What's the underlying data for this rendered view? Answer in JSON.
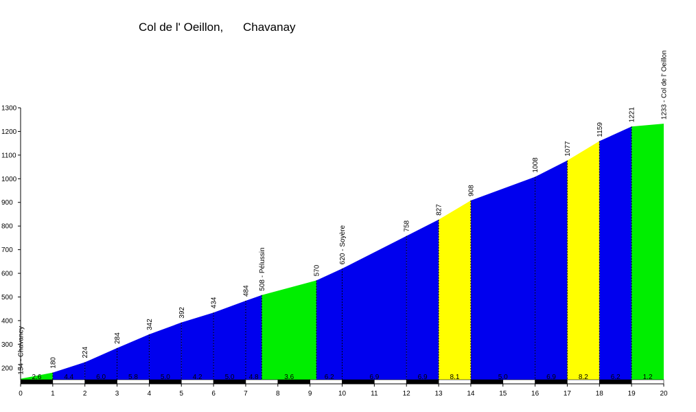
{
  "chart_data": {
    "type": "area",
    "title": "Col de l' Oeillon,",
    "subtitle": "Chavanay",
    "xlabel": "",
    "ylabel": "",
    "xlim": [
      0,
      20
    ],
    "ylim": [
      150,
      1300
    ],
    "x_ticks": [
      0,
      1,
      2,
      3,
      4,
      5,
      6,
      7,
      8,
      9,
      10,
      11,
      12,
      13,
      14,
      15,
      16,
      17,
      18,
      19,
      20
    ],
    "y_ticks": [
      200,
      300,
      400,
      500,
      600,
      700,
      800,
      900,
      1000,
      1100,
      1200,
      1300
    ],
    "points": [
      {
        "x": 0,
        "y": 154,
        "label": "154 - Chavaney"
      },
      {
        "x": 1,
        "y": 180,
        "label": "180"
      },
      {
        "x": 2,
        "y": 224,
        "label": "224"
      },
      {
        "x": 3,
        "y": 284,
        "label": "284"
      },
      {
        "x": 4,
        "y": 342,
        "label": "342"
      },
      {
        "x": 5,
        "y": 392,
        "label": "392"
      },
      {
        "x": 6,
        "y": 434,
        "label": "434"
      },
      {
        "x": 7,
        "y": 484,
        "label": "484"
      },
      {
        "x": 7.5,
        "y": 508,
        "label": "508 - Pélussin"
      },
      {
        "x": 9.2,
        "y": 570,
        "label": "570"
      },
      {
        "x": 10,
        "y": 620,
        "label": "620 - Soyère"
      },
      {
        "x": 12,
        "y": 758,
        "label": "758"
      },
      {
        "x": 13,
        "y": 827,
        "label": "827"
      },
      {
        "x": 14,
        "y": 908,
        "label": "908"
      },
      {
        "x": 16,
        "y": 1008,
        "label": "1008"
      },
      {
        "x": 17,
        "y": 1077,
        "label": "1077"
      },
      {
        "x": 18,
        "y": 1159,
        "label": "1159"
      },
      {
        "x": 19,
        "y": 1221,
        "label": "1221"
      },
      {
        "x": 20,
        "y": 1233,
        "label": "1233 - Col de l' Oeillon"
      }
    ],
    "segments": [
      {
        "from": 0,
        "to": 1,
        "gradient": "2.6",
        "color": "#00ee00"
      },
      {
        "from": 1,
        "to": 2,
        "gradient": "4.4",
        "color": "#0000ee"
      },
      {
        "from": 2,
        "to": 3,
        "gradient": "6.0",
        "color": "#0000ee"
      },
      {
        "from": 3,
        "to": 4,
        "gradient": "5.8",
        "color": "#0000ee"
      },
      {
        "from": 4,
        "to": 5,
        "gradient": "5.0",
        "color": "#0000ee"
      },
      {
        "from": 5,
        "to": 6,
        "gradient": "4.2",
        "color": "#0000ee"
      },
      {
        "from": 6,
        "to": 7,
        "gradient": "5.0",
        "color": "#0000ee"
      },
      {
        "from": 7,
        "to": 7.5,
        "gradient": "4.8",
        "color": "#0000ee"
      },
      {
        "from": 7.5,
        "to": 9.2,
        "gradient": "3.6",
        "color": "#00ee00"
      },
      {
        "from": 9.2,
        "to": 10,
        "gradient": "6.2",
        "color": "#0000ee"
      },
      {
        "from": 10,
        "to": 12,
        "gradient": "6.9",
        "color": "#0000ee"
      },
      {
        "from": 12,
        "to": 13,
        "gradient": "6.9",
        "color": "#0000ee"
      },
      {
        "from": 13,
        "to": 14,
        "gradient": "8.1",
        "color": "#ffff00"
      },
      {
        "from": 14,
        "to": 16,
        "gradient": "5.0",
        "color": "#0000ee"
      },
      {
        "from": 16,
        "to": 17,
        "gradient": "6.9",
        "color": "#0000ee"
      },
      {
        "from": 17,
        "to": 18,
        "gradient": "8.2",
        "color": "#ffff00"
      },
      {
        "from": 18,
        "to": 19,
        "gradient": "6.2",
        "color": "#0000ee"
      },
      {
        "from": 19,
        "to": 20,
        "gradient": "1.2",
        "color": "#00ee00"
      }
    ],
    "grid": false,
    "legend": "none"
  }
}
